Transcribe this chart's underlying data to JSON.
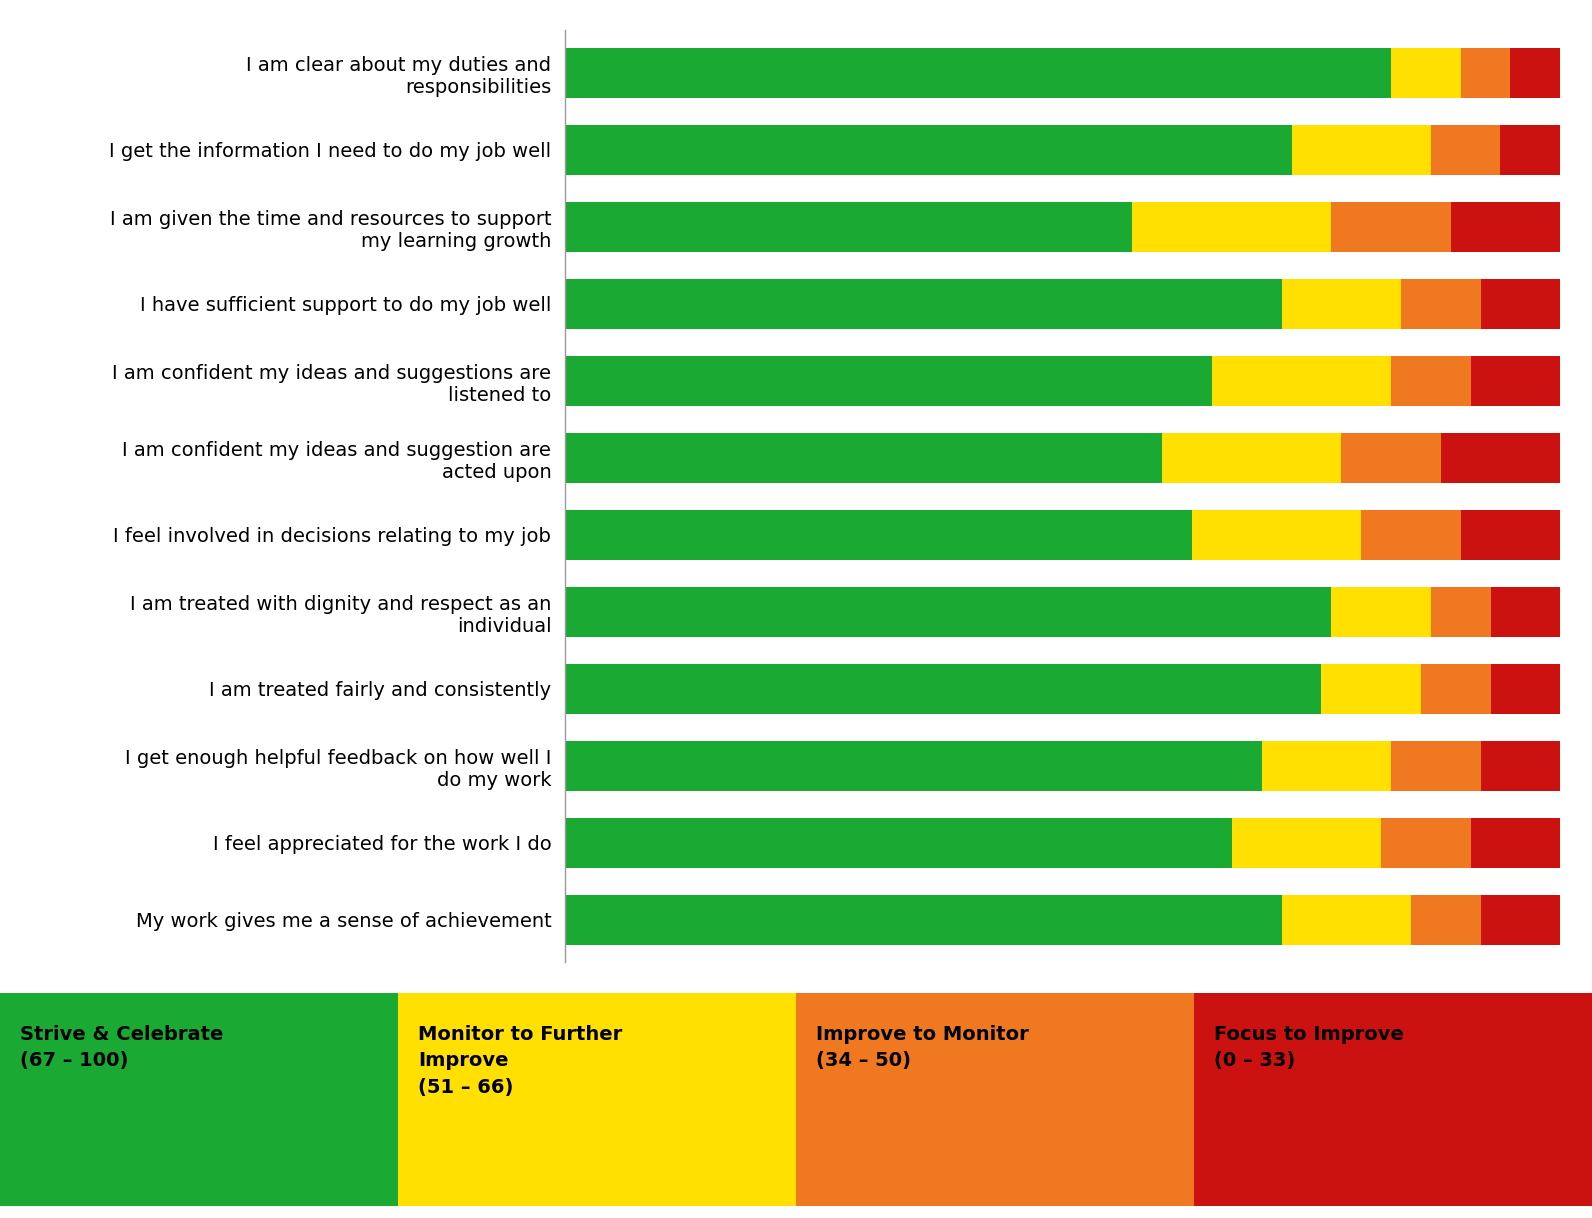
{
  "categories": [
    "My work gives me a sense of achievement",
    "I feel appreciated for the work I do",
    "I get enough helpful feedback on how well I\ndo my work",
    "I am treated fairly and consistently",
    "I am treated with dignity and respect as an\nindividual",
    "I feel involved in decisions relating to my job",
    "I am confident my ideas and suggestion are\nacted upon",
    "I am confident my ideas and suggestions are\nlistened to",
    "I have sufficient support to do my job well",
    "I am given the time and resources to support\nmy learning growth",
    "I get the information I need to do my job well",
    "I am clear about my duties and\nresponsibilities"
  ],
  "green_vals": [
    72,
    67,
    70,
    76,
    77,
    63,
    60,
    65,
    72,
    57,
    73,
    83
  ],
  "yellow_vals": [
    13,
    15,
    13,
    10,
    10,
    17,
    18,
    18,
    12,
    20,
    14,
    7
  ],
  "orange_vals": [
    7,
    9,
    9,
    7,
    6,
    10,
    10,
    8,
    8,
    12,
    7,
    5
  ],
  "red_vals": [
    8,
    9,
    8,
    7,
    7,
    10,
    12,
    9,
    8,
    11,
    6,
    5
  ],
  "green_color": "#1aaa34",
  "yellow_color": "#ffe000",
  "orange_color": "#f07820",
  "red_color": "#cc1111",
  "legend_texts": [
    "Strive & Celebrate\n(67 – 100)",
    "Monitor to Further\nImprove\n(51 – 66)",
    "Improve to Monitor\n(34 – 50)",
    "Focus to Improve\n(0 – 33)"
  ],
  "legend_colors": [
    "#1aaa34",
    "#ffe000",
    "#f07820",
    "#cc1111"
  ],
  "background_color": "#ffffff",
  "bar_height": 0.65,
  "xlim": [
    0,
    100
  ],
  "label_fontsize": 14,
  "legend_fontsize": 14
}
